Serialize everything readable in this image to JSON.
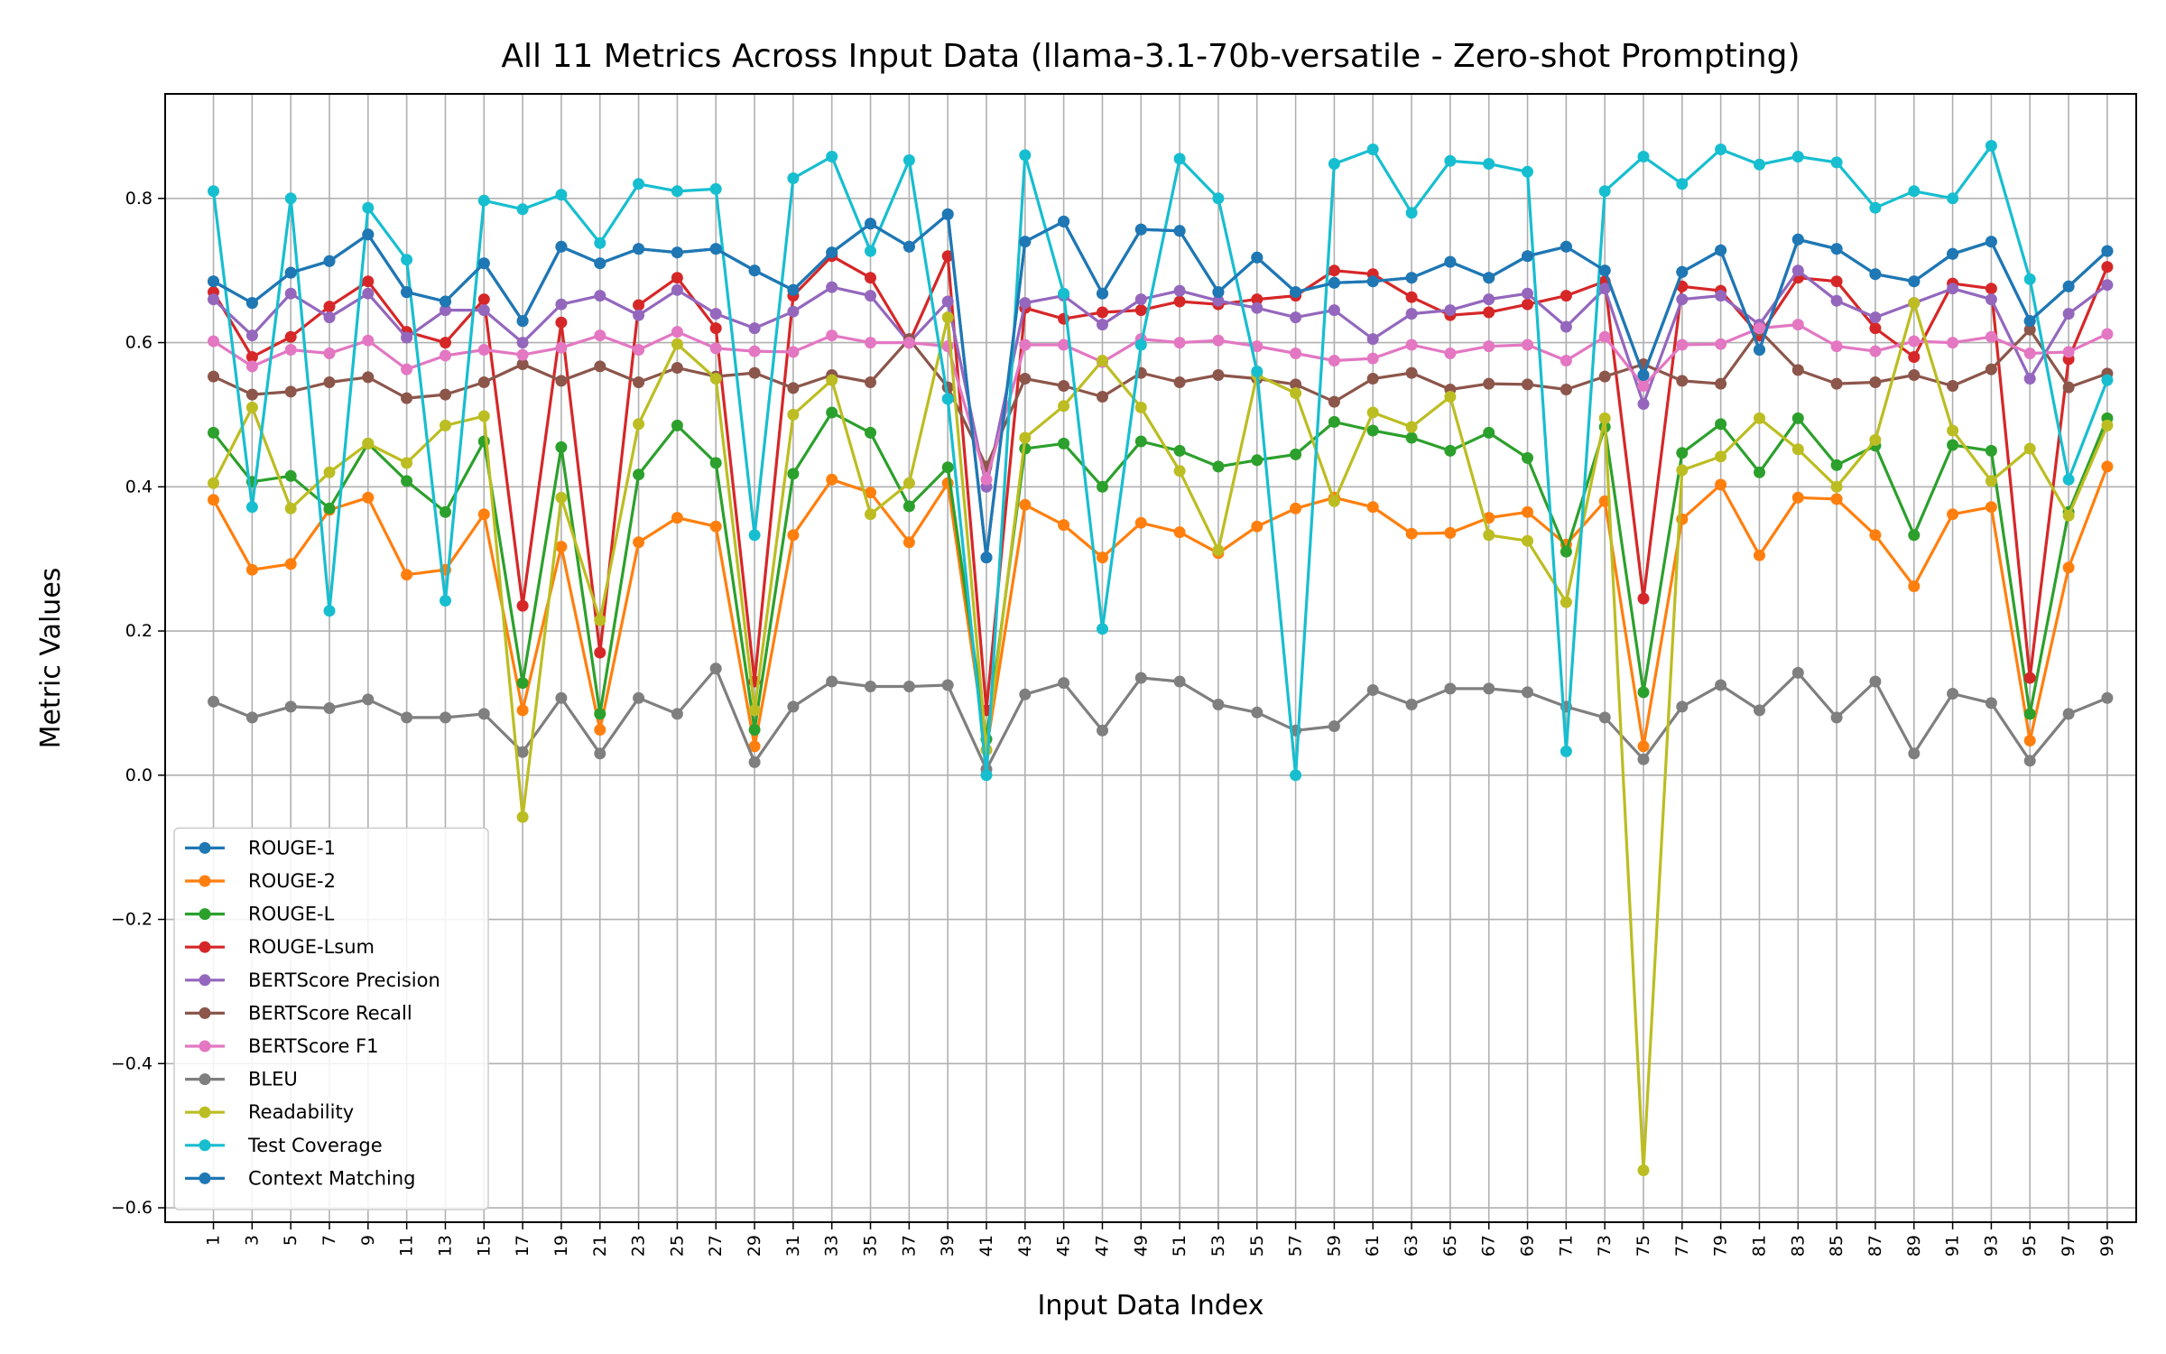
{
  "chart_data": {
    "type": "line",
    "title": "All 11 Metrics Across Input Data (llama-3.1-70b-versatile - Zero-shot Prompting)",
    "xlabel": "Input Data Index",
    "ylabel": "Metric Values",
    "xlim": [
      -1.5,
      100.5
    ],
    "ylim": [
      -0.62,
      0.945
    ],
    "x": [
      1,
      3,
      5,
      7,
      9,
      11,
      13,
      15,
      17,
      19,
      21,
      23,
      25,
      27,
      29,
      31,
      33,
      35,
      37,
      39,
      41,
      43,
      45,
      47,
      49,
      51,
      53,
      55,
      57,
      59,
      61,
      63,
      65,
      67,
      69,
      71,
      73,
      75,
      77,
      79,
      81,
      83,
      85,
      87,
      89,
      91,
      93,
      95,
      97,
      99
    ],
    "xticks": [
      "1",
      "3",
      "5",
      "7",
      "9",
      "11",
      "13",
      "15",
      "17",
      "19",
      "21",
      "23",
      "25",
      "27",
      "29",
      "31",
      "33",
      "35",
      "37",
      "39",
      "41",
      "43",
      "45",
      "47",
      "49",
      "51",
      "53",
      "55",
      "57",
      "59",
      "61",
      "63",
      "65",
      "67",
      "69",
      "71",
      "73",
      "75",
      "77",
      "79",
      "81",
      "83",
      "85",
      "87",
      "89",
      "91",
      "93",
      "95",
      "97",
      "99"
    ],
    "yticks": [
      0.8,
      0.6,
      0.4,
      0.2,
      0.0,
      -0.2,
      -0.4,
      -0.6
    ],
    "ytick_labels": [
      "0.8",
      "0.6",
      "0.4",
      "0.2",
      "0.0",
      "−0.2",
      "−0.4",
      "−0.6"
    ],
    "grid": true,
    "legend_position": "lower-left",
    "series": [
      {
        "name": "ROUGE-1",
        "color": "#1f77b4",
        "values": [
          0.685,
          0.655,
          0.697,
          0.713,
          0.75,
          0.67,
          0.657,
          0.71,
          0.63,
          0.733,
          0.71,
          0.73,
          0.725,
          0.73,
          0.7,
          0.673,
          0.725,
          0.765,
          0.733,
          0.778,
          0.302,
          0.74,
          0.768,
          0.668,
          0.757,
          0.755,
          0.67,
          0.718,
          0.67,
          0.683,
          0.685,
          0.69,
          0.712,
          0.69,
          0.72,
          0.733,
          0.7,
          0.555,
          0.698,
          0.728,
          0.59,
          0.743,
          0.73,
          0.695,
          0.685,
          0.723,
          0.74,
          0.63,
          0.678,
          0.727
        ]
      },
      {
        "name": "ROUGE-2",
        "color": "#ff7f0e",
        "values": [
          0.382,
          0.285,
          0.293,
          0.368,
          0.385,
          0.278,
          0.285,
          0.362,
          0.09,
          0.317,
          0.063,
          0.323,
          0.357,
          0.345,
          0.04,
          0.333,
          0.41,
          0.392,
          0.323,
          0.405,
          0.035,
          0.375,
          0.347,
          0.302,
          0.35,
          0.337,
          0.308,
          0.345,
          0.37,
          0.385,
          0.372,
          0.335,
          0.336,
          0.357,
          0.365,
          0.32,
          0.38,
          0.04,
          0.355,
          0.403,
          0.305,
          0.385,
          0.383,
          0.333,
          0.262,
          0.362,
          0.372,
          0.048,
          0.288,
          0.428
        ]
      },
      {
        "name": "ROUGE-L",
        "color": "#2ca02c",
        "values": [
          0.475,
          0.407,
          0.415,
          0.37,
          0.46,
          0.408,
          0.365,
          0.463,
          0.128,
          0.455,
          0.085,
          0.417,
          0.485,
          0.433,
          0.063,
          0.418,
          0.503,
          0.475,
          0.373,
          0.427,
          0.05,
          0.453,
          0.46,
          0.4,
          0.463,
          0.45,
          0.428,
          0.437,
          0.445,
          0.49,
          0.478,
          0.468,
          0.45,
          0.475,
          0.44,
          0.31,
          0.483,
          0.115,
          0.447,
          0.487,
          0.42,
          0.495,
          0.43,
          0.457,
          0.333,
          0.458,
          0.45,
          0.085,
          0.365,
          0.495
        ]
      },
      {
        "name": "ROUGE-Lsum",
        "color": "#d62728",
        "values": [
          0.67,
          0.58,
          0.608,
          0.65,
          0.685,
          0.615,
          0.6,
          0.66,
          0.235,
          0.628,
          0.17,
          0.652,
          0.69,
          0.62,
          0.13,
          0.665,
          0.72,
          0.69,
          0.6,
          0.72,
          0.09,
          0.648,
          0.633,
          0.642,
          0.645,
          0.657,
          0.653,
          0.66,
          0.665,
          0.7,
          0.695,
          0.663,
          0.638,
          0.642,
          0.653,
          0.665,
          0.685,
          0.245,
          0.678,
          0.672,
          0.61,
          0.69,
          0.685,
          0.62,
          0.58,
          0.682,
          0.675,
          0.135,
          0.577,
          0.705
        ]
      },
      {
        "name": "BERTScore Precision",
        "color": "#9467bd",
        "values": [
          0.66,
          0.61,
          0.668,
          0.635,
          0.668,
          0.607,
          0.645,
          0.645,
          0.6,
          0.653,
          0.665,
          0.638,
          0.673,
          0.64,
          0.62,
          0.643,
          0.677,
          0.665,
          0.6,
          0.657,
          0.4,
          0.655,
          0.665,
          0.625,
          0.66,
          0.672,
          0.658,
          0.648,
          0.635,
          0.645,
          0.605,
          0.64,
          0.645,
          0.66,
          0.668,
          0.622,
          0.675,
          0.515,
          0.66,
          0.665,
          0.625,
          0.7,
          0.658,
          0.635,
          0.655,
          0.675,
          0.66,
          0.55,
          0.64,
          0.68
        ]
      },
      {
        "name": "BERTScore Recall",
        "color": "#8c564b",
        "values": [
          0.553,
          0.528,
          0.532,
          0.545,
          0.552,
          0.523,
          0.528,
          0.545,
          0.57,
          0.547,
          0.567,
          0.545,
          0.565,
          0.553,
          0.558,
          0.537,
          0.555,
          0.545,
          0.605,
          0.538,
          0.428,
          0.55,
          0.54,
          0.525,
          0.558,
          0.545,
          0.555,
          0.55,
          0.542,
          0.518,
          0.55,
          0.558,
          0.535,
          0.543,
          0.542,
          0.535,
          0.553,
          0.57,
          0.547,
          0.543,
          0.617,
          0.562,
          0.543,
          0.545,
          0.555,
          0.54,
          0.563,
          0.618,
          0.538,
          0.557
        ]
      },
      {
        "name": "BERTScore F1",
        "color": "#e377c2",
        "values": [
          0.602,
          0.567,
          0.59,
          0.585,
          0.603,
          0.563,
          0.582,
          0.59,
          0.583,
          0.593,
          0.61,
          0.59,
          0.615,
          0.592,
          0.588,
          0.587,
          0.61,
          0.6,
          0.6,
          0.595,
          0.41,
          0.597,
          0.597,
          0.573,
          0.605,
          0.6,
          0.603,
          0.595,
          0.585,
          0.575,
          0.578,
          0.597,
          0.585,
          0.595,
          0.597,
          0.575,
          0.608,
          0.54,
          0.597,
          0.598,
          0.62,
          0.625,
          0.595,
          0.588,
          0.602,
          0.6,
          0.608,
          0.585,
          0.587,
          0.612
        ]
      },
      {
        "name": "BLEU",
        "color": "#7f7f7f",
        "values": [
          0.102,
          0.08,
          0.095,
          0.093,
          0.105,
          0.08,
          0.08,
          0.085,
          0.032,
          0.107,
          0.03,
          0.107,
          0.085,
          0.148,
          0.018,
          0.095,
          0.13,
          0.123,
          0.123,
          0.125,
          0.008,
          0.112,
          0.128,
          0.062,
          0.135,
          0.13,
          0.098,
          0.087,
          0.062,
          0.068,
          0.118,
          0.098,
          0.12,
          0.12,
          0.115,
          0.095,
          0.08,
          0.022,
          0.095,
          0.125,
          0.09,
          0.142,
          0.08,
          0.13,
          0.03,
          0.113,
          0.1,
          0.02,
          0.085,
          0.107
        ]
      },
      {
        "name": "Readability",
        "color": "#bcbd22",
        "values": [
          0.405,
          0.51,
          0.37,
          0.42,
          0.46,
          0.433,
          0.485,
          0.498,
          -0.058,
          0.385,
          0.215,
          0.487,
          0.598,
          0.55,
          0.09,
          0.5,
          0.548,
          0.362,
          0.405,
          0.635,
          0.035,
          0.468,
          0.512,
          0.575,
          0.51,
          0.422,
          0.312,
          0.555,
          0.53,
          0.38,
          0.503,
          0.483,
          0.525,
          0.333,
          0.325,
          0.24,
          0.495,
          -0.548,
          0.423,
          0.442,
          0.495,
          0.452,
          0.4,
          0.465,
          0.655,
          0.478,
          0.408,
          0.453,
          0.36,
          0.485
        ]
      },
      {
        "name": "Test Coverage",
        "color": "#17becf",
        "values": [
          0.81,
          0.372,
          0.8,
          0.228,
          0.787,
          0.715,
          0.242,
          0.797,
          0.785,
          0.805,
          0.738,
          0.82,
          0.81,
          0.813,
          0.333,
          0.828,
          0.858,
          0.727,
          0.853,
          0.522,
          0.0,
          0.86,
          0.668,
          0.203,
          0.597,
          0.855,
          0.8,
          0.56,
          0.0,
          0.848,
          0.868,
          0.78,
          0.852,
          0.848,
          0.837,
          0.033,
          0.81,
          0.858,
          0.82,
          0.868,
          0.847,
          0.858,
          0.85,
          0.787,
          0.81,
          0.8,
          0.873,
          0.688,
          0.41,
          0.548
        ]
      },
      {
        "name": "Context Matching",
        "color": "#1f77b4",
        "values": [
          0.685,
          0.655,
          0.697,
          0.713,
          0.75,
          0.67,
          0.657,
          0.71,
          0.63,
          0.733,
          0.71,
          0.73,
          0.725,
          0.73,
          0.7,
          0.673,
          0.725,
          0.765,
          0.733,
          0.778,
          0.302,
          0.74,
          0.768,
          0.668,
          0.757,
          0.755,
          0.67,
          0.718,
          0.67,
          0.683,
          0.685,
          0.69,
          0.712,
          0.69,
          0.72,
          0.733,
          0.7,
          0.555,
          0.698,
          0.728,
          0.59,
          0.743,
          0.73,
          0.695,
          0.685,
          0.723,
          0.74,
          0.63,
          0.678,
          0.727
        ]
      }
    ]
  }
}
